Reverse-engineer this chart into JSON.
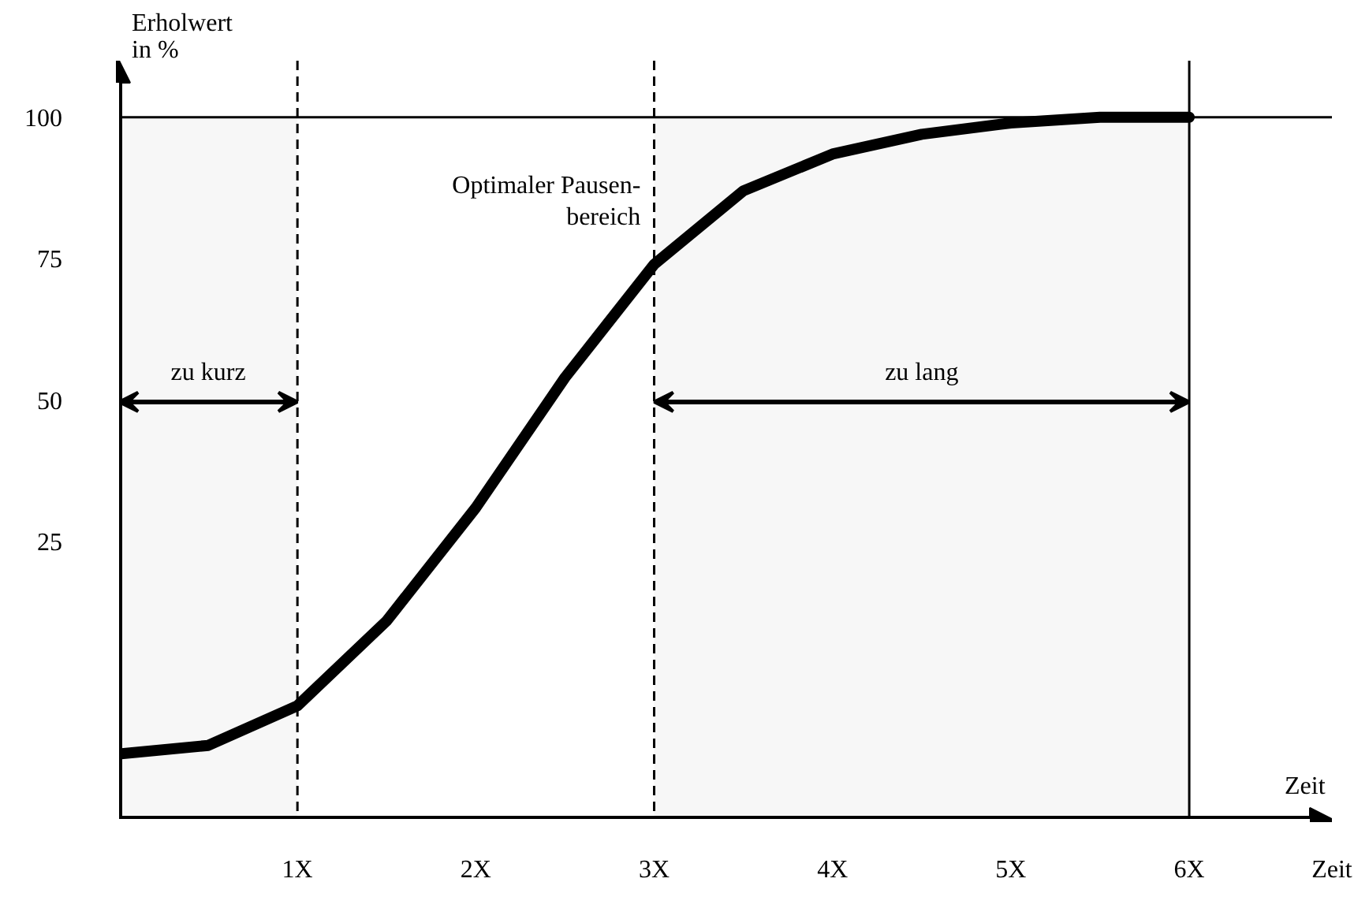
{
  "chart_data": {
    "type": "line",
    "ylabel": "Erholwert in %",
    "xlabel": "Zeit",
    "x": [
      0,
      0.5,
      1,
      1.5,
      2,
      2.5,
      3,
      3.5,
      4,
      4.5,
      5,
      5.5,
      6
    ],
    "series": [
      {
        "color": "#000000",
        "values": [
          -12.5,
          -11,
          -4,
          11,
          31,
          54,
          74,
          87,
          93.5,
          97,
          99,
          100,
          100
        ]
      }
    ],
    "xlim": [
      0,
      6.8
    ],
    "ylim": [
      -24,
      110
    ],
    "xticks": [
      {
        "value": 1,
        "label": "1X"
      },
      {
        "value": 2,
        "label": "2X"
      },
      {
        "value": 3,
        "label": "3X"
      },
      {
        "value": 4,
        "label": "4X"
      },
      {
        "value": 5,
        "label": "5X"
      },
      {
        "value": 6,
        "label": "6X"
      }
    ],
    "yticks": [
      25,
      50,
      75,
      100
    ],
    "ref_lines": [
      {
        "axis": "x",
        "value": 1,
        "line_style": "dashed"
      },
      {
        "axis": "x",
        "value": 3,
        "line_style": "dashed"
      },
      {
        "axis": "x",
        "value": 6,
        "line_style": "solid"
      },
      {
        "axis": "y",
        "value": 100,
        "line_style": "solid"
      }
    ],
    "bands": [
      {
        "axis": "x",
        "from": 0,
        "to": 1,
        "label": "zu kurz",
        "color": "#f7f7f7"
      },
      {
        "axis": "x",
        "from": 3,
        "to": 6,
        "label": "zu lang",
        "color": "#f7f7f7"
      }
    ],
    "annotations": [
      "Optimaler Pausen-\nbereich",
      "Zeit"
    ],
    "grid": false,
    "marker": "none",
    "line_style": "solid"
  }
}
